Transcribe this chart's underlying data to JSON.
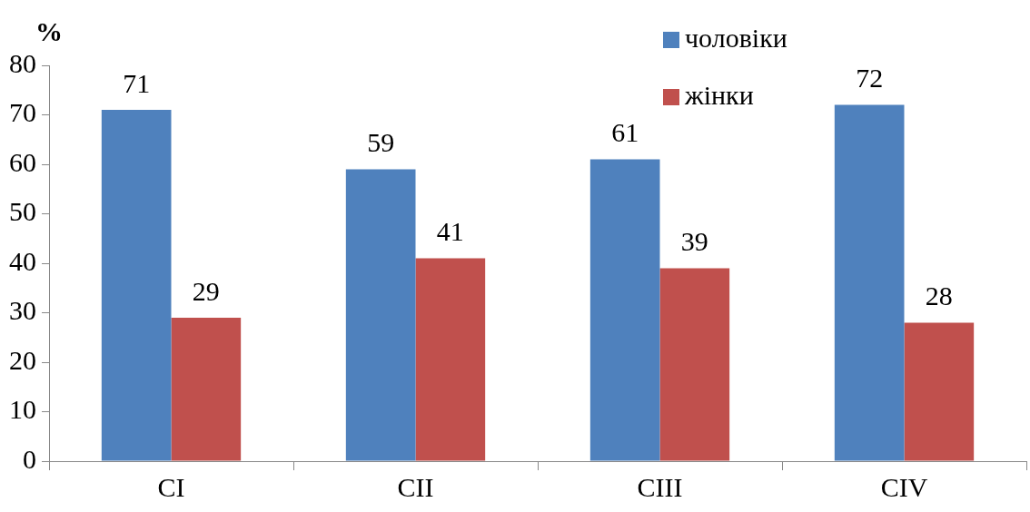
{
  "chart_data": {
    "type": "bar",
    "ylabel": "%",
    "categories": [
      "CI",
      "CII",
      "CIII",
      "CIV"
    ],
    "series": [
      {
        "name": "чоловіки",
        "color": "#4f81bd",
        "values": [
          71,
          59,
          61,
          72
        ]
      },
      {
        "name": "жінки",
        "color": "#c0504d",
        "values": [
          29,
          41,
          39,
          28
        ]
      }
    ],
    "ylim": [
      0,
      80
    ],
    "yticks": [
      0,
      10,
      20,
      30,
      40,
      50,
      60,
      70,
      80
    ],
    "grid": false,
    "legend": "top right",
    "data_labels": true
  }
}
